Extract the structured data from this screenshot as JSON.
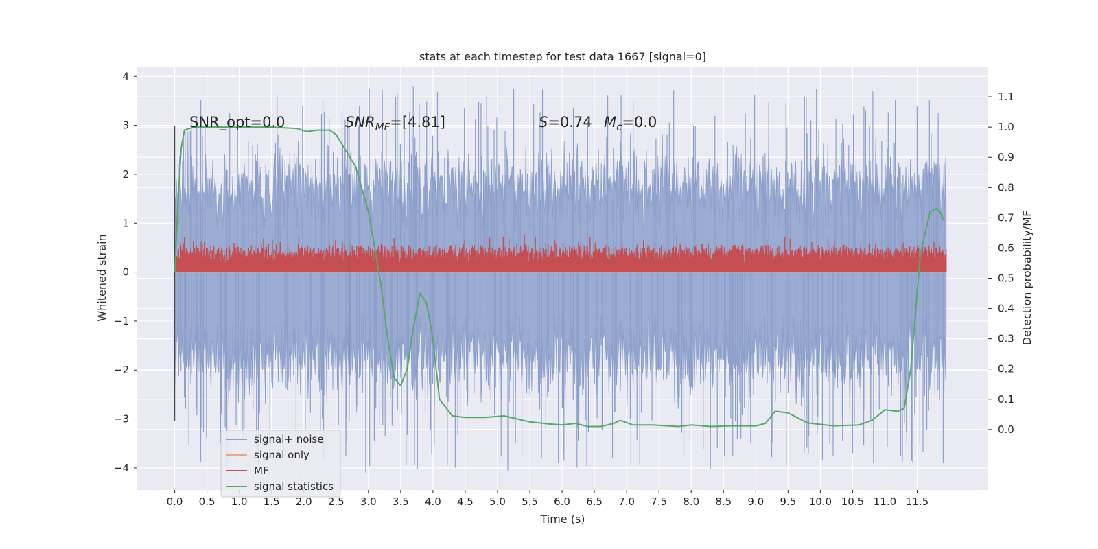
{
  "chart_data": {
    "type": "line",
    "title": "stats at each timestep for test data 1667 [signal=0]",
    "xlabel": "Time (s)",
    "ylabel_left": "Whitened strain",
    "ylabel_right": "Detection probability/MF",
    "xlim": [
      -0.58,
      12.6
    ],
    "ylim_left": [
      -4.45,
      4.2
    ],
    "ylim_right": [
      -0.2,
      1.2
    ],
    "x_ticks": [
      0.0,
      0.5,
      1.0,
      1.5,
      2.0,
      2.5,
      3.0,
      3.5,
      4.0,
      4.5,
      5.0,
      5.5,
      6.0,
      6.5,
      7.0,
      7.5,
      8.0,
      8.5,
      9.0,
      9.5,
      10.0,
      10.5,
      11.0,
      11.5
    ],
    "x_tick_labels": [
      "0.0",
      "0.5",
      "1.0",
      "1.5",
      "2.0",
      "2.5",
      "3.0",
      "3.5",
      "4.0",
      "4.5",
      "5.0",
      "5.5",
      "6.0",
      "6.5",
      "7.0",
      "7.5",
      "8.0",
      "8.5",
      "9.0",
      "9.5",
      "10.0",
      "10.5",
      "11.0",
      "11.5"
    ],
    "y_left_ticks": [
      -4,
      -3,
      -2,
      -1,
      0,
      1,
      2,
      3,
      4
    ],
    "y_left_tick_labels": [
      "−4",
      "−3",
      "−2",
      "−1",
      "0",
      "1",
      "2",
      "3",
      "4"
    ],
    "y_right_ticks": [
      0.0,
      0.1,
      0.2,
      0.3,
      0.4,
      0.5,
      0.6,
      0.7,
      0.8,
      0.9,
      1.0,
      1.1
    ],
    "y_right_tick_labels": [
      "0.0",
      "0.1",
      "0.2",
      "0.3",
      "0.4",
      "0.5",
      "0.6",
      "0.7",
      "0.8",
      "0.9",
      "1.0",
      "1.1"
    ],
    "grid": true,
    "legend_position": "lower-left",
    "annotations": {
      "snr_opt": "SNR_opt=0.0",
      "snr_mf_main": "SNR",
      "snr_mf_sub": "MF",
      "snr_mf_value": "=[4.81]",
      "s_symbol": "S",
      "s_value": "=0.74",
      "mc_main": "M",
      "mc_sub": "c",
      "mc_value": "=0.0"
    },
    "vertical_lines_x": [
      0.0,
      2.7
    ],
    "series": [
      {
        "name": "signal+ noise",
        "color": "#8da0cb",
        "axis": "left",
        "kind": "noise",
        "x_range": [
          0.0,
          11.95
        ],
        "typical_band": [
          -1.7,
          1.7
        ],
        "extremes": [
          -4.1,
          3.8
        ]
      },
      {
        "name": "signal only",
        "color": "#e8a58a",
        "axis": "left",
        "kind": "flat",
        "x_range": [
          0.0,
          11.95
        ],
        "values": [
          0.0
        ]
      },
      {
        "name": "MF",
        "color": "#c44e52",
        "axis": "left",
        "kind": "mf",
        "x_range": [
          0.0,
          11.95
        ],
        "typical_band": [
          0.0,
          0.6
        ],
        "extremes": [
          0.0,
          1.0
        ]
      },
      {
        "name": "signal statistics",
        "color": "#55a868",
        "axis": "right",
        "kind": "curve",
        "x": [
          0.0,
          0.05,
          0.1,
          0.15,
          0.3,
          0.6,
          1.0,
          1.5,
          1.9,
          2.05,
          2.2,
          2.4,
          2.5,
          2.6,
          2.8,
          3.0,
          3.1,
          3.2,
          3.3,
          3.4,
          3.5,
          3.6,
          3.7,
          3.8,
          3.9,
          4.0,
          4.1,
          4.3,
          4.5,
          4.8,
          5.1,
          5.3,
          5.5,
          5.8,
          6.0,
          6.2,
          6.4,
          6.6,
          6.8,
          6.9,
          7.1,
          7.4,
          7.8,
          8.0,
          8.3,
          8.6,
          9.0,
          9.15,
          9.3,
          9.5,
          9.8,
          10.2,
          10.6,
          10.8,
          11.0,
          11.2,
          11.3,
          11.4,
          11.55,
          11.7,
          11.8,
          11.85,
          11.92
        ],
        "values": [
          0.52,
          0.75,
          0.93,
          0.99,
          1.0,
          1.0,
          1.0,
          1.0,
          0.995,
          0.985,
          0.99,
          0.99,
          0.975,
          0.94,
          0.87,
          0.72,
          0.6,
          0.47,
          0.3,
          0.17,
          0.145,
          0.2,
          0.34,
          0.45,
          0.42,
          0.3,
          0.1,
          0.045,
          0.04,
          0.04,
          0.045,
          0.035,
          0.025,
          0.018,
          0.015,
          0.02,
          0.01,
          0.01,
          0.02,
          0.03,
          0.015,
          0.015,
          0.01,
          0.015,
          0.01,
          0.012,
          0.012,
          0.02,
          0.06,
          0.055,
          0.022,
          0.012,
          0.015,
          0.03,
          0.065,
          0.06,
          0.07,
          0.2,
          0.58,
          0.72,
          0.73,
          0.72,
          0.69
        ]
      }
    ]
  }
}
